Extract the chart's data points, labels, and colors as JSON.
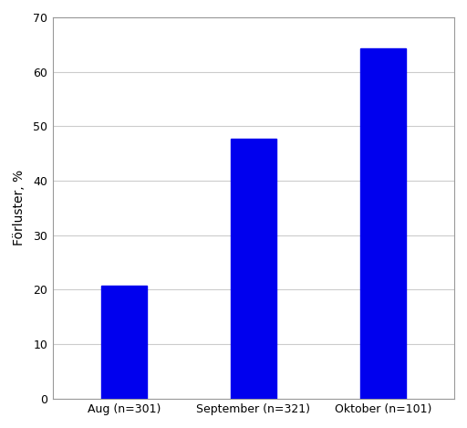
{
  "categories": [
    "Aug (n=301)",
    "September (n=321)",
    "Oktober (n=101)"
  ],
  "values": [
    20.7,
    47.7,
    64.2
  ],
  "bar_color": "#0000ee",
  "ylabel": "Förluster, %",
  "ylim": [
    0,
    70
  ],
  "yticks": [
    0,
    10,
    20,
    30,
    40,
    50,
    60,
    70
  ],
  "background_color": "#ffffff",
  "grid_color": "#cccccc",
  "bar_width": 0.35,
  "spine_color": "#999999",
  "tick_label_fontsize": 9,
  "ylabel_fontsize": 10
}
